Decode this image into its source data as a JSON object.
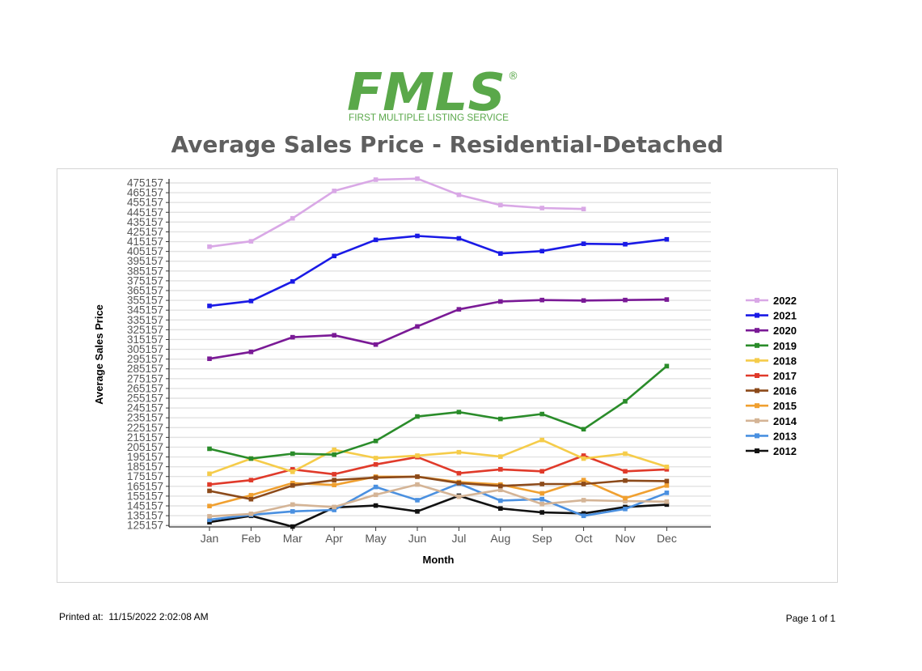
{
  "logo": {
    "text": "FMLS",
    "registered": "®",
    "subtitle": "FIRST MULTIPLE LISTING SERVICE",
    "color": "#5aa84a"
  },
  "title": "Average Sales Price - Residential-Detached",
  "footer": {
    "printed_label": "Printed at:",
    "printed_value": "11/15/2022 2:02:08 AM",
    "page": "Page 1 of 1"
  },
  "chart_data": {
    "type": "line",
    "title": "Average Sales Price - Residential-Detached",
    "xlabel": "Month",
    "ylabel": "Average Sales Price",
    "categories": [
      "Jan",
      "Feb",
      "Mar",
      "Apr",
      "May",
      "Jun",
      "Jul",
      "Aug",
      "Sep",
      "Oct",
      "Nov",
      "Dec"
    ],
    "yticks": [
      125157,
      135157,
      145157,
      155157,
      165157,
      175157,
      185157,
      195157,
      205157,
      215157,
      225157,
      235157,
      245157,
      255157,
      265157,
      275157,
      285157,
      295157,
      305157,
      315157,
      325157,
      335157,
      345157,
      355157,
      365157,
      375157,
      385157,
      395157,
      405157,
      415157,
      425157,
      435157,
      445157,
      455157,
      465157,
      475157
    ],
    "ylim": [
      123657,
      475157
    ],
    "grid": true,
    "legend_position": "right",
    "series": [
      {
        "name": "2022",
        "color": "#d9a8e6",
        "values": [
          410000,
          415500,
          439000,
          467000,
          478500,
          479500,
          463000,
          452500,
          449500,
          448500,
          null,
          null
        ]
      },
      {
        "name": "2021",
        "color": "#1a1ae6",
        "values": [
          349500,
          354500,
          374500,
          400500,
          417000,
          421000,
          418500,
          403000,
          405500,
          413000,
          412500,
          417500
        ]
      },
      {
        "name": "2020",
        "color": "#7a1a96",
        "values": [
          295500,
          302500,
          317500,
          319500,
          310000,
          328500,
          346000,
          354000,
          355500,
          355000,
          355500,
          356000
        ]
      },
      {
        "name": "2019",
        "color": "#2a8c2a",
        "values": [
          203500,
          193500,
          198500,
          197500,
          211500,
          236500,
          241000,
          234000,
          239000,
          223500,
          252000,
          288000
        ]
      },
      {
        "name": "2018",
        "color": "#f5cc4a",
        "values": [
          178000,
          193500,
          180000,
          202500,
          194000,
          196500,
          200000,
          195500,
          212500,
          193500,
          198500,
          185000
        ]
      },
      {
        "name": "2017",
        "color": "#e03a2a",
        "values": [
          167000,
          171500,
          182500,
          177500,
          187500,
          195000,
          178500,
          182500,
          180500,
          196500,
          180500,
          182500
        ]
      },
      {
        "name": "2016",
        "color": "#8c4a1a",
        "values": [
          160500,
          152000,
          166000,
          171500,
          174000,
          175000,
          168500,
          165500,
          167500,
          167500,
          171000,
          170500
        ]
      },
      {
        "name": "2015",
        "color": "#f0a030",
        "values": [
          145000,
          156000,
          168500,
          166500,
          175000,
          175000,
          169500,
          167000,
          158000,
          171500,
          153000,
          166000
        ]
      },
      {
        "name": "2014",
        "color": "#d4b496",
        "values": [
          134500,
          137000,
          146500,
          144000,
          156500,
          167000,
          154500,
          161500,
          147000,
          151000,
          150000,
          149500
        ]
      },
      {
        "name": "2013",
        "color": "#4a90e0",
        "values": [
          131000,
          136000,
          139500,
          141000,
          164500,
          151000,
          168000,
          150500,
          152000,
          135000,
          142000,
          158500
        ]
      },
      {
        "name": "2012",
        "color": "#111111",
        "values": [
          128500,
          135000,
          124000,
          143500,
          145500,
          139500,
          155500,
          142500,
          138500,
          137500,
          144000,
          146500
        ]
      }
    ]
  }
}
